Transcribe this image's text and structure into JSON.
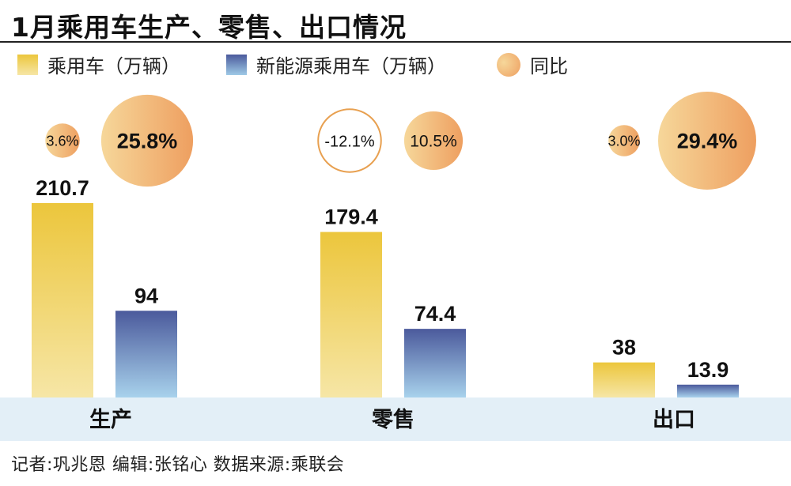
{
  "title": "1月乘用车生产、零售、出口情况",
  "footer": "记者:巩兆恩   编辑:张铭心   数据来源:乘联会",
  "legend": {
    "passenger": "乘用车（万辆）",
    "nev": "新能源乘用车（万辆）",
    "yoy": "同比"
  },
  "colors": {
    "passenger_top": "#ecc63c",
    "passenger_bottom": "#f6e6a6",
    "nev_top": "#4b5a9c",
    "nev_bottom": "#a8d2ec",
    "bubble_light": "#f6d79a",
    "bubble_dark": "#ee9f60",
    "band": "#e3eff7",
    "negative_ring": "#e8a050"
  },
  "chart_data": {
    "type": "bar",
    "categories": [
      "生产",
      "零售",
      "出口"
    ],
    "series": [
      {
        "name": "乘用车（万辆）",
        "values": [
          210.7,
          179.4,
          38
        ],
        "labels": [
          "210.7",
          "179.4",
          "38"
        ]
      },
      {
        "name": "新能源乘用车（万辆）",
        "values": [
          94,
          74.4,
          13.9
        ],
        "labels": [
          "94",
          "74.4",
          "13.9"
        ]
      }
    ],
    "yoy": {
      "name": "同比",
      "passenger": [
        3.6,
        -12.1,
        3.0
      ],
      "passenger_labels": [
        "3.6%",
        "-12.1%",
        "3.0%"
      ],
      "nev": [
        25.8,
        10.5,
        29.4
      ],
      "nev_labels": [
        "25.8%",
        "10.5%",
        "29.4%"
      ]
    },
    "ylim": [
      0,
      210.7
    ],
    "grid": false,
    "legend_position": "top"
  }
}
